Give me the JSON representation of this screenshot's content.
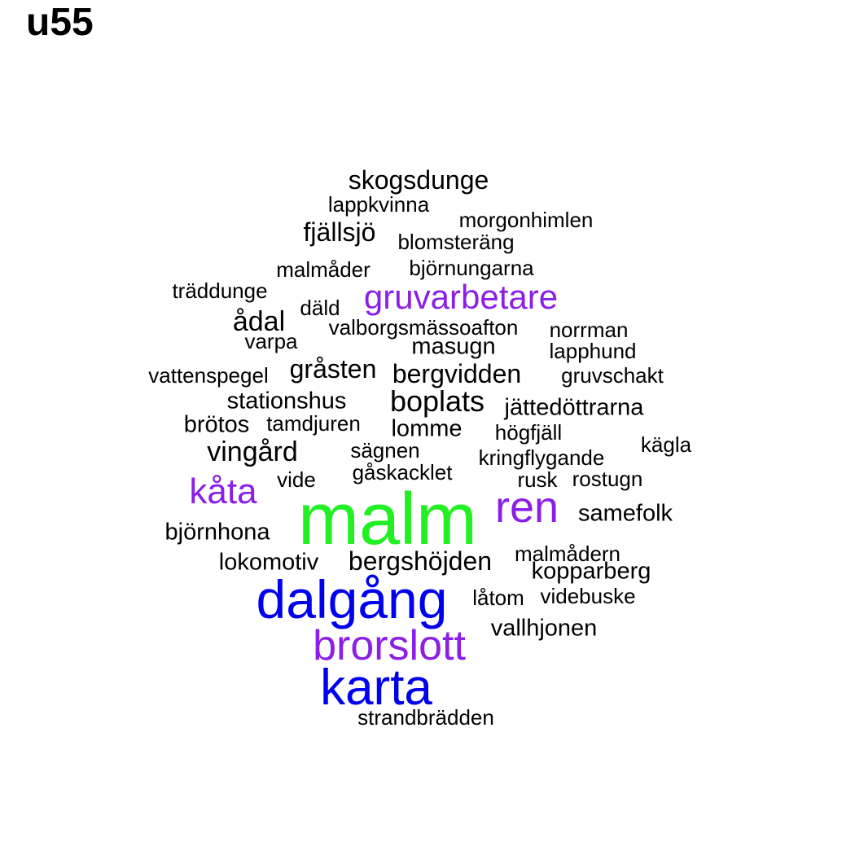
{
  "title": "u55",
  "colors": {
    "black": "#000000",
    "purple": "#8B1FE8",
    "blue": "#0000F0",
    "green": "#22F022"
  },
  "words": [
    {
      "text": "skogsdunge",
      "color": "black"
    },
    {
      "text": "lappkvinna",
      "color": "black"
    },
    {
      "text": "morgonhimlen",
      "color": "black"
    },
    {
      "text": "fjällsjö",
      "color": "black"
    },
    {
      "text": "blomsteräng",
      "color": "black"
    },
    {
      "text": "malmåder",
      "color": "black"
    },
    {
      "text": "björnungarna",
      "color": "black"
    },
    {
      "text": "träddunge",
      "color": "black"
    },
    {
      "text": "gruvarbetare",
      "color": "purple"
    },
    {
      "text": "däld",
      "color": "black"
    },
    {
      "text": "ådal",
      "color": "black"
    },
    {
      "text": "valborgsmässoafton",
      "color": "black"
    },
    {
      "text": "norrman",
      "color": "black"
    },
    {
      "text": "varpa",
      "color": "black"
    },
    {
      "text": "masugn",
      "color": "black"
    },
    {
      "text": "lapphund",
      "color": "black"
    },
    {
      "text": "vattenspegel",
      "color": "black"
    },
    {
      "text": "gråsten",
      "color": "black"
    },
    {
      "text": "bergvidden",
      "color": "black"
    },
    {
      "text": "gruvschakt",
      "color": "black"
    },
    {
      "text": "stationshus",
      "color": "black"
    },
    {
      "text": "boplats",
      "color": "black"
    },
    {
      "text": "jättedöttrarna",
      "color": "black"
    },
    {
      "text": "brötos",
      "color": "black"
    },
    {
      "text": "tamdjuren",
      "color": "black"
    },
    {
      "text": "lomme",
      "color": "black"
    },
    {
      "text": "högfjäll",
      "color": "black"
    },
    {
      "text": "kägla",
      "color": "black"
    },
    {
      "text": "vingård",
      "color": "black"
    },
    {
      "text": "sägnen",
      "color": "black"
    },
    {
      "text": "kringflygande",
      "color": "black"
    },
    {
      "text": "gåskacklet",
      "color": "black"
    },
    {
      "text": "vide",
      "color": "black"
    },
    {
      "text": "rusk",
      "color": "black"
    },
    {
      "text": "rostugn",
      "color": "black"
    },
    {
      "text": "kåta",
      "color": "purple"
    },
    {
      "text": "ren",
      "color": "purple"
    },
    {
      "text": "samefolk",
      "color": "black"
    },
    {
      "text": "malm",
      "color": "green"
    },
    {
      "text": "björnhona",
      "color": "black"
    },
    {
      "text": "malmådern",
      "color": "black"
    },
    {
      "text": "lokomotiv",
      "color": "black"
    },
    {
      "text": "bergshöjden",
      "color": "black"
    },
    {
      "text": "kopparberg",
      "color": "black"
    },
    {
      "text": "låtom",
      "color": "black"
    },
    {
      "text": "videbuske",
      "color": "black"
    },
    {
      "text": "dalgång",
      "color": "blue"
    },
    {
      "text": "vallhjonen",
      "color": "black"
    },
    {
      "text": "brorslott",
      "color": "purple"
    },
    {
      "text": "karta",
      "color": "blue"
    },
    {
      "text": "strandbrädden",
      "color": "black"
    }
  ]
}
